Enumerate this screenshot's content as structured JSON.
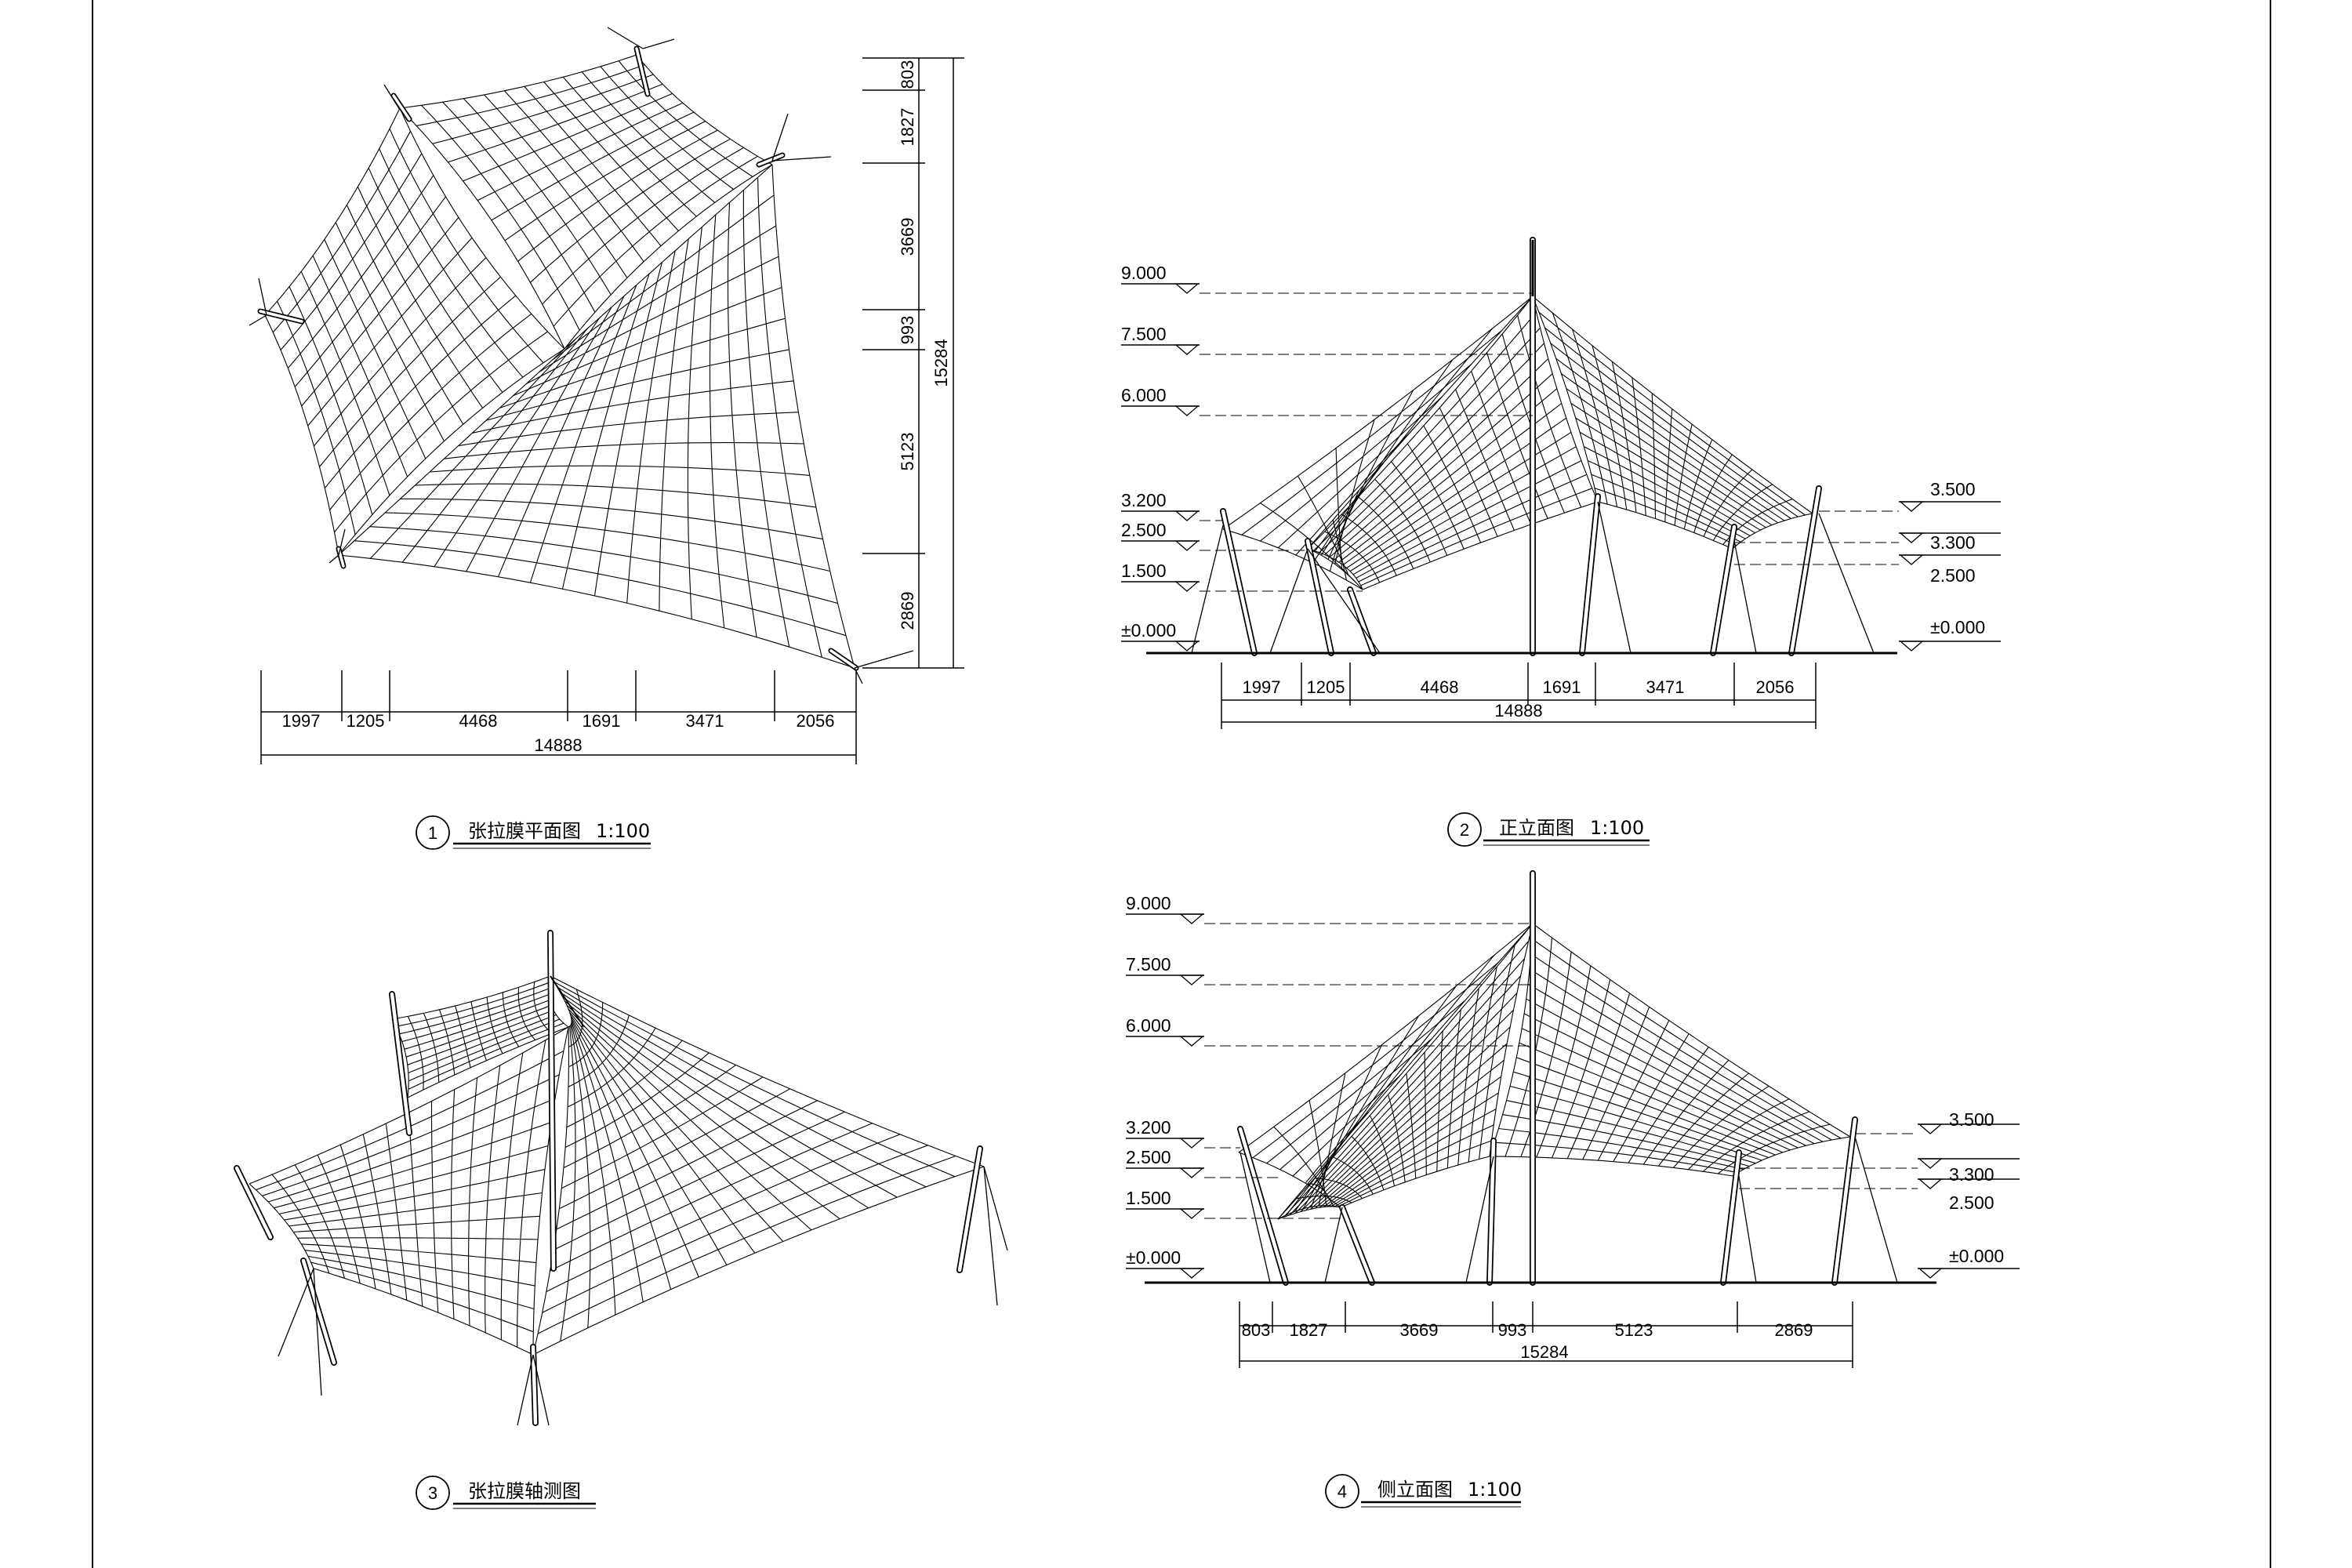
{
  "views": [
    {
      "number": "1",
      "title": "张拉膜平面图",
      "scale": "1:100",
      "horizontal_dims": [
        "1997",
        "1205",
        "4468",
        "1691",
        "3471",
        "2056"
      ],
      "horizontal_total": "14888",
      "vertical_dims": [
        "803",
        "1827",
        "3669",
        "993",
        "5123",
        "2869"
      ],
      "vertical_total": "15284"
    },
    {
      "number": "2",
      "title": "正立面图",
      "scale": "1:100",
      "elevations_left": [
        "9.000",
        "7.500",
        "6.000",
        "3.200",
        "2.500",
        "1.500",
        "±0.000"
      ],
      "elevations_right": [
        "3.500",
        "3.300",
        "2.500",
        "±0.000"
      ],
      "horizontal_dims": [
        "1997",
        "1205",
        "4468",
        "1691",
        "3471",
        "2056"
      ],
      "horizontal_total": "14888"
    },
    {
      "number": "3",
      "title": "张拉膜轴测图",
      "scale": ""
    },
    {
      "number": "4",
      "title": "侧立面图",
      "scale": "1:100",
      "elevations_left": [
        "9.000",
        "7.500",
        "6.000",
        "3.200",
        "2.500",
        "1.500",
        "±0.000"
      ],
      "elevations_right": [
        "3.500",
        "3.300",
        "2.500",
        "±0.000"
      ],
      "horizontal_dims": [
        "803",
        "1827",
        "3669",
        "993",
        "5123",
        "2869"
      ],
      "horizontal_total": "15284"
    }
  ]
}
